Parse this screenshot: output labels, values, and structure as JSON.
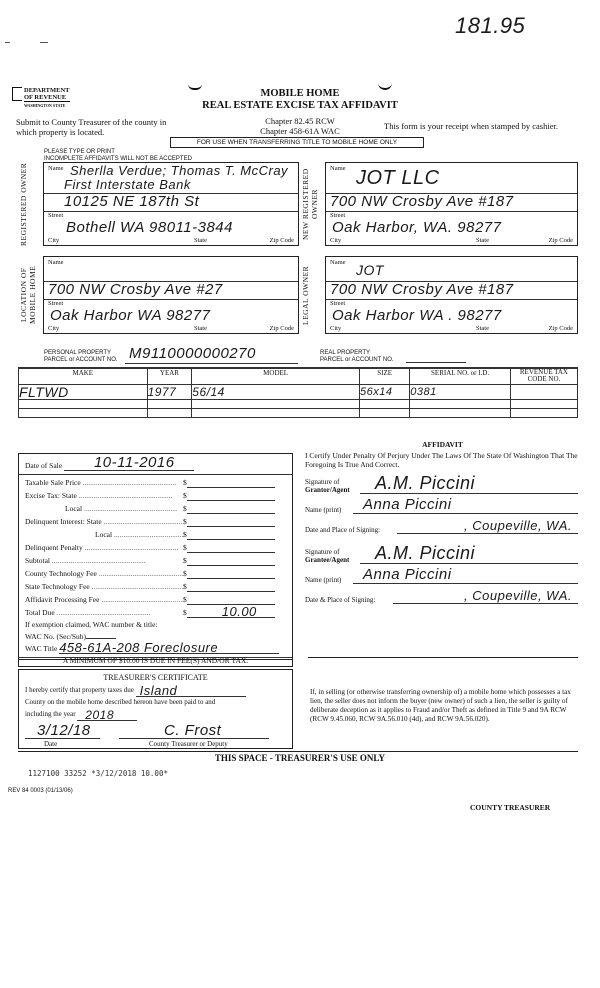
{
  "annotation": "181.95",
  "agency": {
    "line1": "DEPARTMENT",
    "line2": "OF REVENUE",
    "line3": "WASHINGTON STATE"
  },
  "title": {
    "line1": "MOBILE HOME",
    "line2": "REAL ESTATE EXCISE TAX AFFIDAVIT"
  },
  "submit_text": "Submit to County Treasurer of the county in which property is located.",
  "chapters": [
    "Chapter 82.45 RCW",
    "Chapter 458-61A WAC"
  ],
  "receipt_text": "This form is your receipt when stamped by cashier.",
  "notice": "FOR USE WHEN TRANSFERRING TITLE TO MOBILE HOME ONLY",
  "instructions": [
    "PLEASE TYPE OR PRINT",
    "INCOMPLETE AFFIDAVITS WILL NOT BE ACCEPTED"
  ],
  "labels": {
    "name": "Name",
    "street": "Street",
    "city": "City",
    "state": "State",
    "zip": "Zip Code"
  },
  "registered_owner": {
    "section": "REGISTERED OWNER",
    "name": "Sherlla Verdue; Thomas T. McCray",
    "name2": "First Interstate Bank",
    "street": "10125 NE 187th St",
    "city_line": "Bothell   WA  98011-3844"
  },
  "new_registered_owner": {
    "section": "NEW REGISTERED OWNER",
    "name": "JOT  LLC",
    "street": "700 NW Crosby Ave #187",
    "city_line": "Oak Harbor, WA. 98277"
  },
  "location": {
    "section": "LOCATION OF MOBILE HOME",
    "name": "",
    "street": "700 NW Crosby Ave #27",
    "city_line": "Oak Harbor  WA  98277"
  },
  "legal_owner": {
    "section": "LEGAL OWNER",
    "name": "JOT",
    "street": "700 NW Crosby Ave #187",
    "city_line": "Oak Harbor  WA . 98277"
  },
  "personal_property": {
    "label1": "PERSONAL PROPERTY",
    "label2": "PARCEL or ACCOUNT NO.",
    "value": "M9110000000270"
  },
  "real_property": {
    "label1": "REAL PROPERTY",
    "label2": "PARCEL or ACCOUNT NO.",
    "value": ""
  },
  "home_table": {
    "headers": [
      "MAKE",
      "YEAR",
      "MODEL",
      "SIZE",
      "SERIAL NO. or I.D.",
      "REVENUE TAX CODE NO."
    ],
    "rows": [
      [
        "FLTWD",
        "1977",
        "56/14",
        "56x14",
        "0381",
        ""
      ]
    ]
  },
  "sale": {
    "date_label": "Date of Sale",
    "date": "10-11-2016",
    "fees": [
      {
        "label": "Taxable Sale Price",
        "value": ""
      },
      {
        "label": "Excise Tax:   State",
        "value": ""
      },
      {
        "label": "Local",
        "value": "",
        "indent": true
      },
      {
        "label": "Delinquent Interest:   State",
        "value": ""
      },
      {
        "label": "Local",
        "value": "",
        "indent": true
      },
      {
        "label": "Delinquent Penalty",
        "value": ""
      },
      {
        "label": "Subtotal",
        "value": ""
      },
      {
        "label": "County Technology Fee",
        "value": ""
      },
      {
        "label": "State Technology Fee",
        "value": ""
      },
      {
        "label": "Affidavit Processing Fee",
        "value": ""
      },
      {
        "label": "Total Due",
        "value": "10.00"
      }
    ],
    "exemption_label": "If exemption claimed, WAC number & title:",
    "wac_no_label": "WAC No. (Sec/Sub)",
    "wac_no": "",
    "wac_title_label": "WAC Title",
    "wac_title": "458-61A-208  Foreclosure",
    "minimum": "A MINIMUM OF $10.00 IS DUE IN FEE(S) AND/OR TAX."
  },
  "affidavit": {
    "title": "AFFIDAVIT",
    "text": "I Certify Under Penalty Of Perjury Under The Laws Of The State Of Washington That The Foregoing Is True And Correct.",
    "grantor_sig_label1": "Signature of",
    "grantor_sig_label2": "Grantor/Agent",
    "grantor_sig": "A.M. Piccini",
    "name_label": "Name (print)",
    "grantor_name": "Anna Piccini",
    "date_place_label": "Date and Place of Signing:",
    "grantor_place": ", Coupeville, WA.",
    "grantee_sig_label1": "Signature of",
    "grantee_sig_label2": "Grantee/Agent",
    "grantee_sig": "A.M. Piccini",
    "grantee_name": "Anna Piccini",
    "date_place_label2": "Date & Place of Signing:",
    "grantee_place": ", Coupeville, WA."
  },
  "treasurer_cert": {
    "title": "TREASURER'S CERTIFICATE",
    "text1": "I hereby certify that property taxes due",
    "county": "Island",
    "text2": "County on the mobile home described hereon have been paid to and",
    "text3": "including the year",
    "year": "2018",
    "date": "3/12/18",
    "date_label": "Date",
    "signature": "C. Frost",
    "sig_label": "County Treasurer or Deputy"
  },
  "warning": "If, in selling (or otherwise transferring ownership of) a mobile home which possesses a tax lien, the seller does not inform the buyer (new owner) of such a lien, the seller is guilty of deliberate deception as it applies to Fraud and/or Theft as defined in Title 9 and 9A RCW (RCW 9.45.060, RCW 9A.56.010 (4d), and RCW 9A.56.020).",
  "treasurer_space": "THIS SPACE - TREASURER'S USE ONLY",
  "stamp": "1127100 33252 *3/12/2018 10.00*",
  "form_no": "REV 84 0003 (01/13/06)",
  "county_treasurer": "COUNTY TREASURER"
}
